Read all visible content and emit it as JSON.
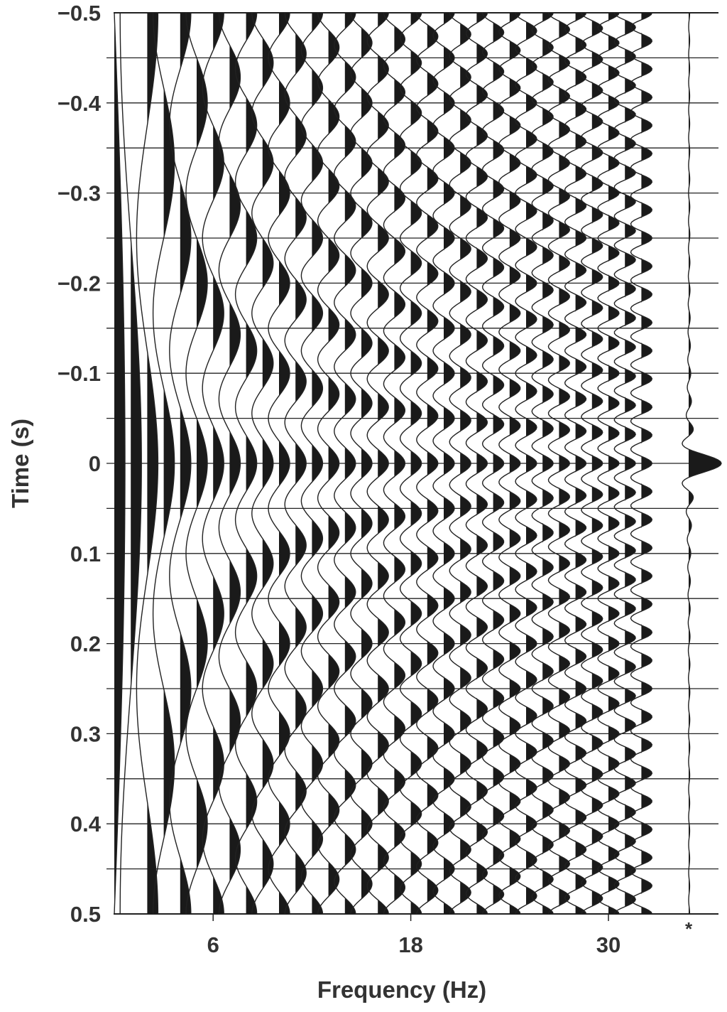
{
  "chart_data": {
    "type": "line",
    "style": "seismic wiggle traces with positive lobes filled black",
    "xlabel": "Frequency (Hz)",
    "ylabel": "Time (s)",
    "y_inverted": true,
    "ylim": [
      -0.5,
      0.5
    ],
    "xlim": [
      0,
      32
    ],
    "x_ticks": [
      6,
      18,
      30
    ],
    "x_tick_labels": [
      "6",
      "18",
      "30"
    ],
    "y_ticks": [
      -0.5,
      -0.4,
      -0.3,
      -0.2,
      -0.1,
      0,
      0.1,
      0.2,
      0.3,
      0.4,
      0.5
    ],
    "y_tick_labels": [
      "−0.5",
      "−0.4",
      "−0.3",
      "−0.2",
      "−0.1",
      "0",
      "0.1",
      "0.2",
      "0.3",
      "0.4",
      "0.5"
    ],
    "grid": {
      "horizontal": true,
      "interval_s": 0.05
    },
    "trace_function": "cos(2*pi*f*t)",
    "frequencies_hz": [
      0,
      1,
      2,
      3,
      4,
      5,
      6,
      7,
      8,
      9,
      10,
      11,
      12,
      13,
      14,
      15,
      16,
      17,
      18,
      19,
      20,
      21,
      22,
      23,
      24,
      25,
      26,
      27,
      28,
      29,
      30,
      31,
      32
    ],
    "sum_trace": {
      "label": "*",
      "description_of_values": "sum of all traces",
      "peak_time_s": 0
    },
    "colors": {
      "ink": "#222222",
      "fill": "#1a1a1a",
      "text": "#333333",
      "background": "#ffffff"
    }
  }
}
